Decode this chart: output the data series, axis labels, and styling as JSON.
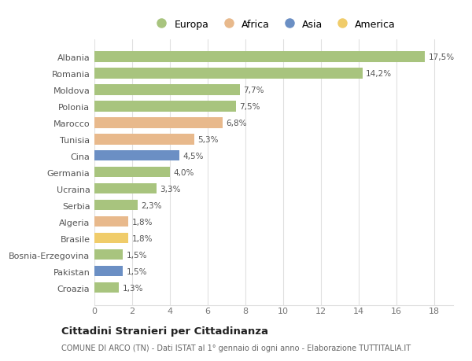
{
  "countries": [
    "Croazia",
    "Pakistan",
    "Bosnia-Erzegovina",
    "Brasile",
    "Algeria",
    "Serbia",
    "Ucraina",
    "Germania",
    "Cina",
    "Tunisia",
    "Marocco",
    "Polonia",
    "Moldova",
    "Romania",
    "Albania"
  ],
  "values": [
    1.3,
    1.5,
    1.5,
    1.8,
    1.8,
    2.3,
    3.3,
    4.0,
    4.5,
    5.3,
    6.8,
    7.5,
    7.7,
    14.2,
    17.5
  ],
  "labels": [
    "1,3%",
    "1,5%",
    "1,5%",
    "1,8%",
    "1,8%",
    "2,3%",
    "3,3%",
    "4,0%",
    "4,5%",
    "5,3%",
    "6,8%",
    "7,5%",
    "7,7%",
    "14,2%",
    "17,5%"
  ],
  "continents": [
    "Europa",
    "Asia",
    "Europa",
    "America",
    "Africa",
    "Europa",
    "Europa",
    "Europa",
    "Asia",
    "Africa",
    "Africa",
    "Europa",
    "Europa",
    "Europa",
    "Europa"
  ],
  "colors": {
    "Europa": "#a8c47e",
    "Africa": "#e8b98c",
    "Asia": "#6b8fc4",
    "America": "#f0cc6a"
  },
  "xlim": [
    0,
    19
  ],
  "xticks": [
    0,
    2,
    4,
    6,
    8,
    10,
    12,
    14,
    16,
    18
  ],
  "title": "Cittadini Stranieri per Cittadinanza",
  "subtitle": "COMUNE DI ARCO (TN) - Dati ISTAT al 1° gennaio di ogni anno - Elaborazione TUTTITALIA.IT",
  "background_color": "#ffffff",
  "bar_height": 0.65,
  "grid_color": "#e0e0e0"
}
